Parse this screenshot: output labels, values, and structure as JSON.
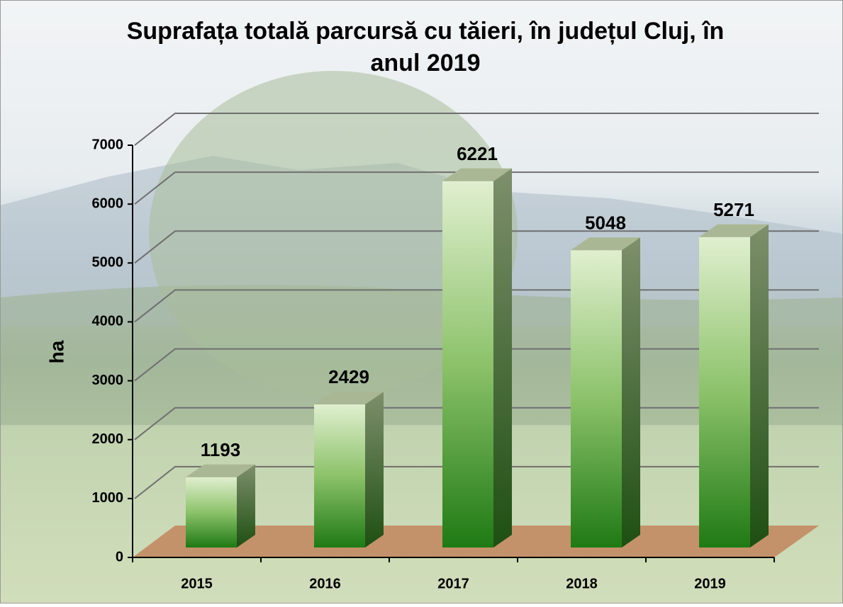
{
  "chart_data": {
    "type": "bar3d",
    "title": "Suprafața totală parcursă cu tăieri, în județul Cluj, în anul 2019",
    "y_label": "ha",
    "categories": [
      "2015",
      "2016",
      "2017",
      "2018",
      "2019"
    ],
    "values": [
      1193,
      2429,
      6221,
      5048,
      5271
    ],
    "color": "#1f7a14",
    "ylim": [
      0,
      7000
    ],
    "yticks": [
      0,
      1000,
      2000,
      3000,
      4000,
      5000,
      6000,
      7000
    ],
    "grid": true
  }
}
